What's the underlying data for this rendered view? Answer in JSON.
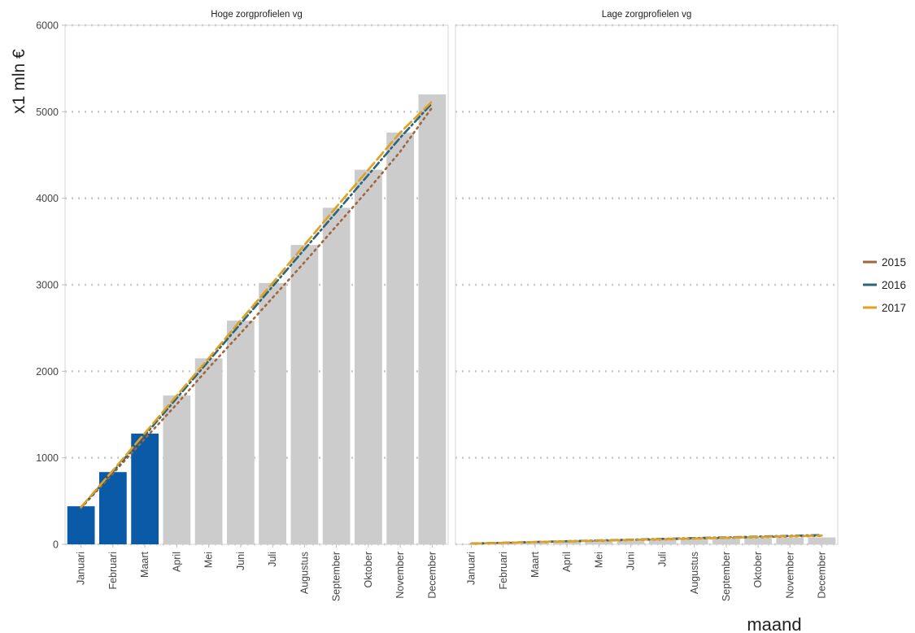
{
  "chart_data": {
    "type": "bar",
    "ylabel": "x1 mln €",
    "xlabel": "maand",
    "ylim": [
      0,
      6000
    ],
    "yticks": [
      "0",
      "1000",
      "2000",
      "3000",
      "4000",
      "5000",
      "6000"
    ],
    "grid": "dotted horizontal",
    "legend_position": "right",
    "categories": [
      "Januari",
      "Februari",
      "Maart",
      "April",
      "Mei",
      "Juni",
      "Juli",
      "Augustus",
      "September",
      "Oktober",
      "November",
      "December"
    ],
    "colors": {
      "bar_actual": "#0b5aa8",
      "bar_other": "#cccccc",
      "grid": "#c8c8c8",
      "axis": "#bdbdbd",
      "text": "#444444"
    },
    "legend": [
      {
        "label": "2015",
        "color": "#a0663c"
      },
      {
        "label": "2016",
        "color": "#2d6478"
      },
      {
        "label": "2017",
        "color": "#e0a020"
      }
    ],
    "panels": [
      {
        "title": "Hoge zorgprofielen vg",
        "bars": [
          440,
          835,
          1280,
          1720,
          2150,
          2585,
          3020,
          3460,
          3890,
          4330,
          4760,
          5200
        ],
        "highlighted_count": 3,
        "lines": [
          {
            "year": "2015",
            "values": [
              420,
              820,
              1220,
              1620,
              2040,
              2440,
              2850,
              3260,
              3680,
              4100,
              4540,
              5050
            ]
          },
          {
            "year": "2016",
            "values": [
              425,
              840,
              1260,
              1690,
              2120,
              2550,
              2980,
              3410,
              3840,
              4270,
              4700,
              5100
            ]
          },
          {
            "year": "2017",
            "values": [
              430,
              855,
              1285,
              1720,
              2150,
              2590,
              3020,
              3460,
              3900,
              4330,
              4760,
              5120
            ]
          }
        ]
      },
      {
        "title": "Lage zorgprofielen vg",
        "bars": [
          5,
          12,
          22,
          30,
          38,
          46,
          54,
          60,
          66,
          72,
          76,
          80
        ],
        "highlighted_count": 0,
        "lines": [
          {
            "year": "2015",
            "values": [
              8,
              16,
              25,
              33,
              41,
              49,
              57,
              66,
              74,
              82,
              90,
              98
            ]
          },
          {
            "year": "2016",
            "values": [
              9,
              18,
              27,
              36,
              45,
              54,
              63,
              72,
              80,
              89,
              98,
              107
            ]
          },
          {
            "year": "2017",
            "values": [
              8,
              17,
              26,
              34,
              43,
              51,
              60,
              68,
              76,
              85,
              93,
              101
            ]
          }
        ]
      }
    ]
  }
}
